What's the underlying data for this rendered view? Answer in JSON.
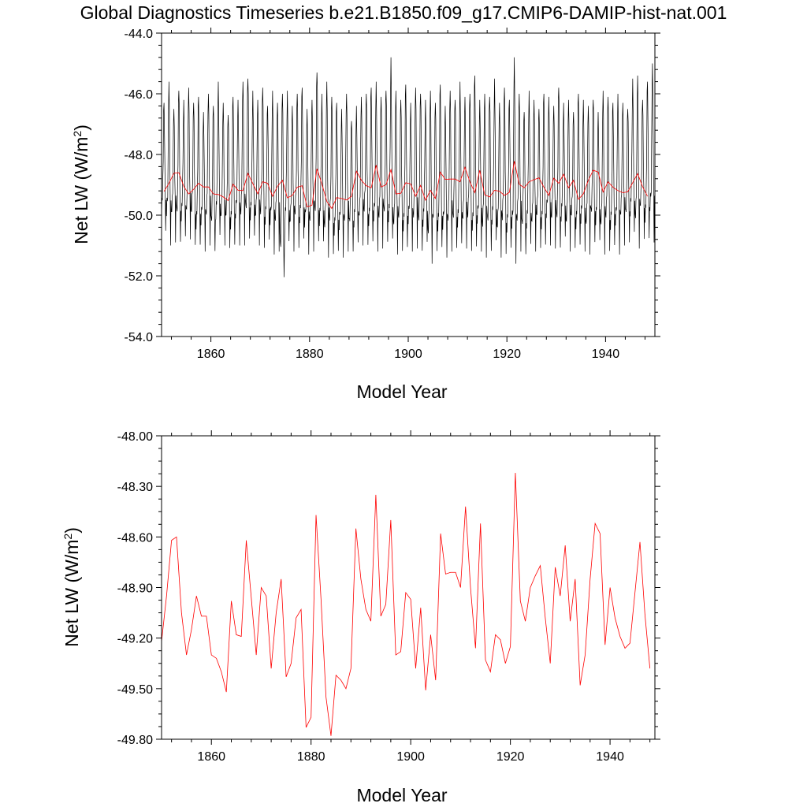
{
  "title": "Global Diagnostics Timeseries b.e21.B1850.f09_g17.CMIP6-DAMIP-hist-nat.001",
  "chart_data": [
    {
      "type": "line",
      "xlabel": "Model Year",
      "ylabel": "Net LW (W/m",
      "ylabel_sup": "2",
      "ylabel_close": ")",
      "xlim": [
        1850,
        1950
      ],
      "ylim": [
        -54.0,
        -44.0
      ],
      "x_ticks": [
        1860,
        1880,
        1900,
        1920,
        1940
      ],
      "x_tick_labels": [
        "1860",
        "1880",
        "1900",
        "1920",
        "1940"
      ],
      "y_ticks": [
        -54.0,
        -52.0,
        -50.0,
        -48.0,
        -46.0,
        -44.0
      ],
      "y_tick_labels": [
        "-54.0",
        "-52.0",
        "-50.0",
        "-48.0",
        "-46.0",
        "-44.0"
      ],
      "grid": false,
      "series": [
        {
          "color": "#000000",
          "resolution": "monthly",
          "x_start": 1850,
          "annual_min": [
            -50.7,
            -51.0,
            -50.9,
            -51.0,
            -51.0,
            -50.8,
            -51.0,
            -51.2,
            -51.2,
            -51.0,
            -51.3,
            -51.0,
            -51.0,
            -51.1,
            -51.2,
            -51.0,
            -51.0,
            -50.9,
            -51.0,
            -51.0,
            -51.1,
            -51.0,
            -51.3,
            -51.2,
            -52.2,
            -51.2,
            -51.2,
            -51.1,
            -51.0,
            -51.3,
            -51.2,
            -51.0,
            -51.2,
            -51.4,
            -51.3,
            -51.4,
            -51.4,
            -51.2,
            -51.3,
            -51.2,
            -51.0,
            -51.0,
            -51.1,
            -51.2,
            -51.1,
            -51.0,
            -51.2,
            -51.3,
            -51.2,
            -51.3,
            -51.2,
            -51.1,
            -51.3,
            -51.2,
            -51.6,
            -51.2,
            -51.3,
            -51.4,
            -51.2,
            -51.2,
            -51.3,
            -51.1,
            -51.2,
            -51.3,
            -51.2,
            -51.4,
            -51.3,
            -51.2,
            -51.4,
            -51.3,
            -51.3,
            -51.6,
            -51.2,
            -51.4,
            -51.3,
            -51.2,
            -51.1,
            -51.2,
            -51.0,
            -51.1,
            -51.2,
            -51.0,
            -51.2,
            -51.1,
            -51.2,
            -51.2,
            -51.3,
            -51.0,
            -51.1,
            -51.3,
            -51.2,
            -51.2,
            -51.3,
            -51.0,
            -51.0,
            -50.9,
            -51.1,
            -50.8,
            -51.0,
            -50.9
          ],
          "annual_max": [
            -46.3,
            -45.6,
            -46.5,
            -45.9,
            -46.2,
            -45.8,
            -46.3,
            -46.1,
            -46.6,
            -46.0,
            -46.4,
            -45.6,
            -46.3,
            -46.7,
            -46.1,
            -46.2,
            -45.6,
            -45.5,
            -45.9,
            -46.2,
            -45.8,
            -46.4,
            -45.9,
            -46.3,
            -46.0,
            -45.9,
            -46.4,
            -46.0,
            -45.8,
            -46.5,
            -46.2,
            -45.3,
            -46.0,
            -45.6,
            -46.1,
            -46.3,
            -46.5,
            -46.0,
            -46.9,
            -46.4,
            -46.1,
            -46.0,
            -45.8,
            -45.6,
            -46.1,
            -45.9,
            -44.8,
            -45.9,
            -46.2,
            -45.7,
            -46.3,
            -45.8,
            -46.0,
            -46.2,
            -45.9,
            -46.3,
            -45.7,
            -46.4,
            -45.9,
            -46.2,
            -45.6,
            -46.1,
            -46.0,
            -45.4,
            -46.2,
            -46.0,
            -46.1,
            -45.5,
            -46.3,
            -45.8,
            -46.2,
            -44.8,
            -46.0,
            -46.6,
            -45.9,
            -46.2,
            -46.5,
            -46.0,
            -46.1,
            -46.4,
            -45.8,
            -46.3,
            -46.2,
            -46.6,
            -46.0,
            -46.2,
            -46.4,
            -46.2,
            -46.6,
            -45.9,
            -46.1,
            -46.3,
            -46.0,
            -46.3,
            -46.5,
            -45.5,
            -45.4,
            -46.2,
            -45.6,
            -45.0
          ]
        },
        {
          "color": "#ff0000",
          "x_start": 1850,
          "values": [
            -49.22,
            -48.95,
            -48.62,
            -48.6,
            -49.05,
            -49.3,
            -49.15,
            -48.95,
            -49.07,
            -49.07,
            -49.3,
            -49.32,
            -49.4,
            -49.52,
            -48.98,
            -49.18,
            -49.19,
            -48.62,
            -48.96,
            -49.3,
            -48.9,
            -48.95,
            -49.38,
            -49.05,
            -48.85,
            -49.43,
            -49.35,
            -49.08,
            -49.03,
            -49.73,
            -49.67,
            -48.47,
            -48.97,
            -49.55,
            -49.78,
            -49.42,
            -49.45,
            -49.5,
            -49.38,
            -48.55,
            -48.85,
            -49.03,
            -49.1,
            -48.35,
            -49.07,
            -49.0,
            -48.5,
            -49.3,
            -49.28,
            -48.93,
            -48.97,
            -49.38,
            -49.02,
            -49.51,
            -49.18,
            -49.45,
            -48.58,
            -48.82,
            -48.81,
            -48.81,
            -48.9,
            -48.42,
            -48.9,
            -49.26,
            -48.52,
            -49.33,
            -49.4,
            -49.18,
            -49.21,
            -49.35,
            -49.25,
            -48.22,
            -48.98,
            -49.1,
            -48.9,
            -48.83,
            -48.77,
            -49.08,
            -49.35,
            -48.78,
            -48.95,
            -48.65,
            -49.1,
            -48.85,
            -49.48,
            -49.3,
            -48.85,
            -48.52,
            -48.58,
            -49.24,
            -48.9,
            -49.08,
            -49.19,
            -49.26,
            -49.23,
            -48.93,
            -48.63,
            -49.06,
            -49.38
          ],
          "y_ticks_plot2": [
            -49.8,
            -49.5,
            -49.2,
            -48.9,
            -48.6,
            -48.3,
            -48.0
          ]
        }
      ]
    },
    {
      "type": "line",
      "xlabel": "Model Year",
      "ylabel": "Net LW (W/m",
      "ylabel_sup": "2",
      "ylabel_close": ")",
      "xlim": [
        1850,
        1949
      ],
      "ylim": [
        -49.8,
        -48.0
      ],
      "x_ticks": [
        1860,
        1880,
        1900,
        1920,
        1940
      ],
      "x_tick_labels": [
        "1860",
        "1880",
        "1900",
        "1920",
        "1940"
      ],
      "y_ticks": [
        -49.8,
        -49.5,
        -49.2,
        -48.9,
        -48.6,
        -48.3,
        -48.0
      ],
      "y_tick_labels": [
        "-49.80",
        "-49.50",
        "-49.20",
        "-48.90",
        "-48.60",
        "-48.30",
        "-48.00"
      ],
      "grid": false,
      "series": [
        {
          "color": "#ff0000",
          "x_start": 1850,
          "values": [
            -49.22,
            -48.95,
            -48.62,
            -48.6,
            -49.05,
            -49.3,
            -49.15,
            -48.95,
            -49.07,
            -49.07,
            -49.3,
            -49.32,
            -49.4,
            -49.52,
            -48.98,
            -49.18,
            -49.19,
            -48.62,
            -48.96,
            -49.3,
            -48.9,
            -48.95,
            -49.38,
            -49.05,
            -48.85,
            -49.43,
            -49.35,
            -49.08,
            -49.03,
            -49.73,
            -49.67,
            -48.47,
            -48.97,
            -49.55,
            -49.78,
            -49.42,
            -49.45,
            -49.5,
            -49.38,
            -48.55,
            -48.85,
            -49.03,
            -49.1,
            -48.35,
            -49.07,
            -49.0,
            -48.5,
            -49.3,
            -49.28,
            -48.93,
            -48.97,
            -49.38,
            -49.02,
            -49.51,
            -49.18,
            -49.45,
            -48.58,
            -48.82,
            -48.81,
            -48.81,
            -48.9,
            -48.42,
            -48.9,
            -49.26,
            -48.52,
            -49.33,
            -49.4,
            -49.18,
            -49.21,
            -49.35,
            -49.25,
            -48.22,
            -48.98,
            -49.1,
            -48.9,
            -48.83,
            -48.77,
            -49.08,
            -49.35,
            -48.78,
            -48.95,
            -48.65,
            -49.1,
            -48.85,
            -49.48,
            -49.3,
            -48.85,
            -48.52,
            -48.58,
            -49.24,
            -48.9,
            -49.08,
            -49.19,
            -49.26,
            -49.23,
            -48.93,
            -48.63,
            -49.06,
            -49.38
          ]
        }
      ]
    }
  ]
}
